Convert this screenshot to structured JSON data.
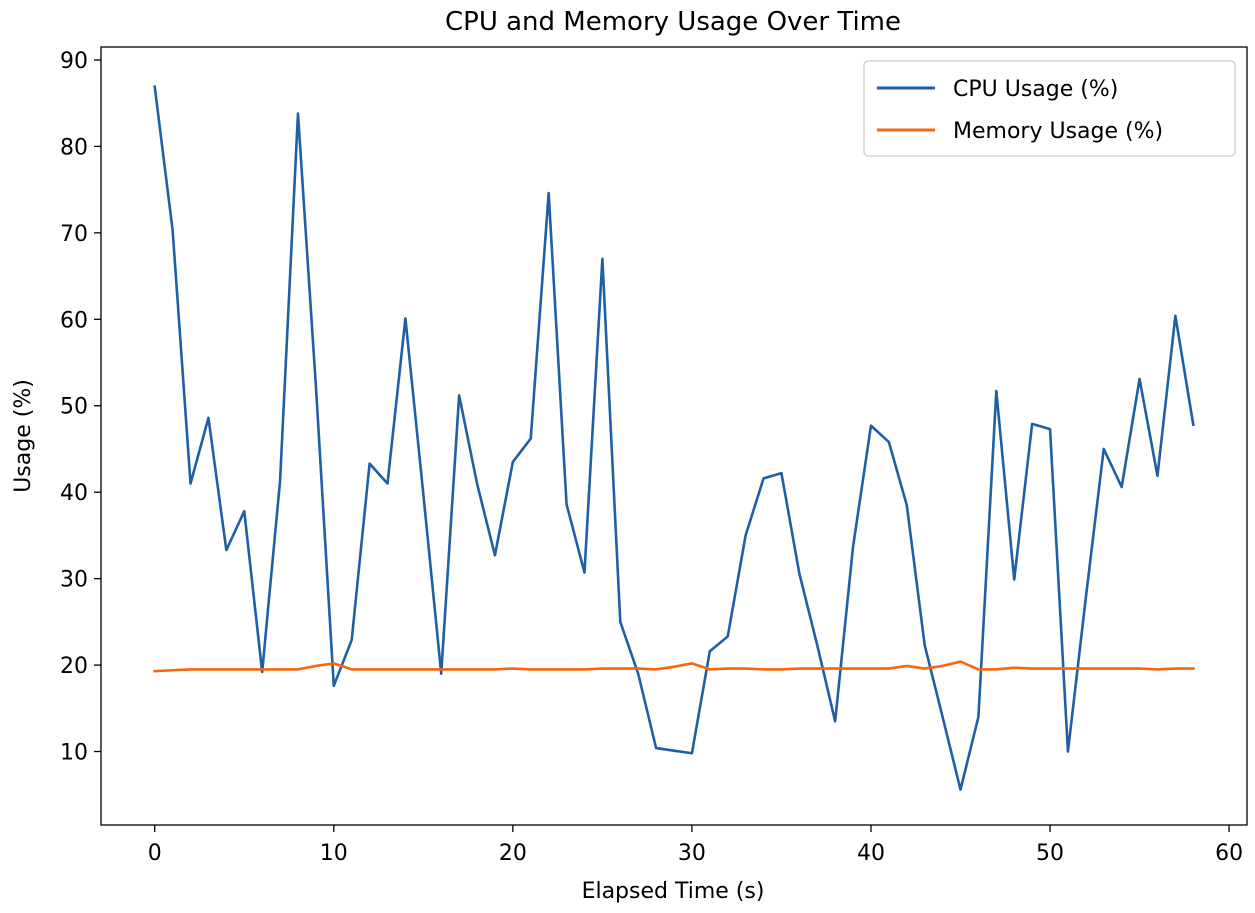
{
  "chart_data": {
    "type": "line",
    "title": "CPU and Memory Usage Over Time",
    "xlabel": "Elapsed Time (s)",
    "ylabel": "Usage (%)",
    "xlim": [
      -3,
      61
    ],
    "ylim": [
      1.5,
      91.5
    ],
    "xticks": [
      0,
      10,
      20,
      30,
      40,
      50,
      60
    ],
    "yticks": [
      10,
      20,
      30,
      40,
      50,
      60,
      70,
      80,
      90
    ],
    "grid": false,
    "legend_position": "upper right",
    "x": [
      0,
      1,
      2,
      3,
      4,
      5,
      6,
      7,
      8,
      9,
      10,
      11,
      12,
      13,
      14,
      15,
      16,
      17,
      18,
      19,
      20,
      21,
      22,
      23,
      24,
      25,
      26,
      27,
      28,
      29,
      30,
      31,
      32,
      33,
      34,
      35,
      36,
      37,
      38,
      39,
      40,
      41,
      42,
      43,
      44,
      45,
      46,
      47,
      48,
      49,
      50,
      51,
      52,
      53,
      54,
      55,
      56,
      57,
      58
    ],
    "series": [
      {
        "name": "CPU Usage (%)",
        "color": "#1f5fa6",
        "values": [
          86.9,
          70.3,
          41.0,
          48.6,
          33.3,
          37.8,
          19.2,
          41.3,
          83.8,
          52.3,
          17.6,
          22.9,
          43.3,
          41.0,
          60.1,
          39.8,
          19.0,
          51.2,
          41.0,
          32.7,
          43.5,
          46.2,
          74.6,
          38.6,
          30.7,
          67.0,
          25.0,
          19.0,
          10.4,
          10.1,
          9.8,
          21.6,
          23.3,
          35.0,
          41.6,
          42.2,
          30.6,
          22.3,
          13.5,
          33.7,
          47.7,
          45.8,
          38.5,
          22.3,
          14.0,
          5.6,
          14.0,
          51.7,
          29.9,
          47.9,
          47.3,
          10.0,
          27.8,
          45.0,
          40.6,
          53.1,
          41.9,
          60.4,
          47.8
        ]
      },
      {
        "name": "Memory Usage (%)",
        "color": "#f5660f",
        "values": [
          19.3,
          19.4,
          19.5,
          19.5,
          19.5,
          19.5,
          19.5,
          19.5,
          19.5,
          19.9,
          20.2,
          19.5,
          19.5,
          19.5,
          19.5,
          19.5,
          19.5,
          19.5,
          19.5,
          19.5,
          19.6,
          19.5,
          19.5,
          19.5,
          19.5,
          19.6,
          19.6,
          19.6,
          19.5,
          19.8,
          20.2,
          19.5,
          19.6,
          19.6,
          19.5,
          19.5,
          19.6,
          19.6,
          19.6,
          19.6,
          19.6,
          19.6,
          19.9,
          19.6,
          19.9,
          20.4,
          19.5,
          19.5,
          19.7,
          19.6,
          19.6,
          19.6,
          19.6,
          19.6,
          19.6,
          19.6,
          19.5,
          19.6,
          19.6
        ]
      }
    ]
  }
}
